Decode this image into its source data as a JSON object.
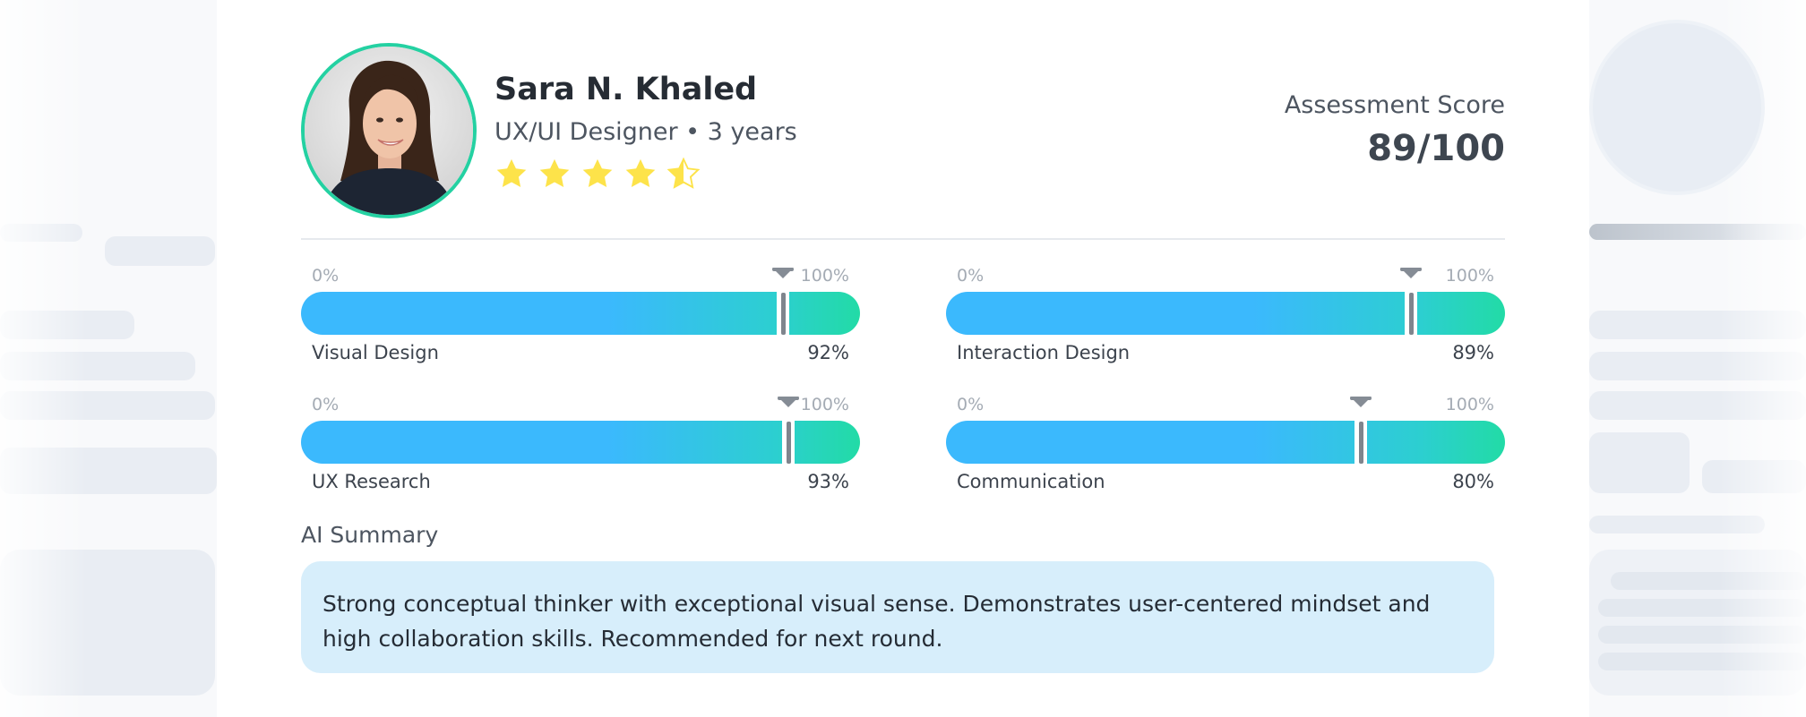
{
  "profile": {
    "name": "Sara N. Khaled",
    "role": "UX/UI Designer • 3 years",
    "rating": 4.5,
    "rating_max": 5,
    "avatar_ring_color": "#24d1a2"
  },
  "score": {
    "label": "Assessment Score",
    "value": "89/100"
  },
  "skills": [
    {
      "label": "Visual Design",
      "value_text": "92%",
      "value": 92,
      "min_label": "0%",
      "max_label": "100%"
    },
    {
      "label": "Interaction Design",
      "value_text": "89%",
      "value": 89,
      "min_label": "0%",
      "max_label": "100%"
    },
    {
      "label": "UX Research",
      "value_text": "93%",
      "value": 93,
      "min_label": "0%",
      "max_label": "100%"
    },
    {
      "label": "Communication",
      "value_text": "80%",
      "value": 80,
      "min_label": "0%",
      "max_label": "100%"
    }
  ],
  "summary": {
    "title": "AI Summary",
    "text": "Strong conceptual thinker with exceptional visual sense. Demonstrates user-centered mindset and high collaboration skills. Recommended for next round."
  },
  "colors": {
    "bar_start": "#3bb9fd",
    "bar_end": "#22dba6",
    "star": "#fde34a",
    "summary_bg": "#d7eefb"
  },
  "icons": [
    "star-icon",
    "star-half-icon",
    "marker-icon"
  ]
}
